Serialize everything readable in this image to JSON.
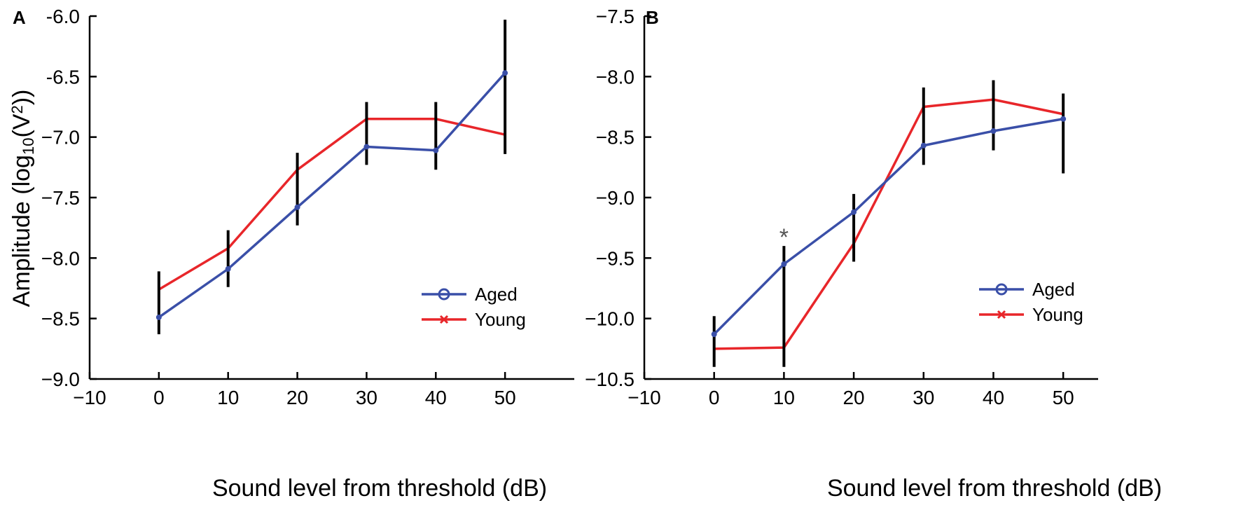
{
  "figure": {
    "y_axis_title": "Amplitude (log",
    "y_axis_title_sub": "10",
    "y_axis_title_tail": "(V",
    "y_axis_title_sup": "2",
    "y_axis_title_end": "))"
  },
  "chart_data": [
    {
      "panel": "A",
      "type": "line",
      "xlabel": "Sound level from threshold (dB)",
      "ylabel": "Amplitude (log10(V2))",
      "xlim": [
        -10,
        60
      ],
      "ylim": [
        -9.0,
        -6.0
      ],
      "xticks": [
        -10,
        0,
        10,
        20,
        30,
        40,
        50
      ],
      "xtick_labels": [
        "−10",
        "0",
        "10",
        "20",
        "30",
        "40",
        "50"
      ],
      "yticks": [
        -9.0,
        -8.5,
        -8.0,
        -7.5,
        -7.0,
        -6.5,
        -6.0
      ],
      "ytick_labels": [
        "−9.0",
        "−8.5",
        "−8.0",
        "−7.5",
        "−7.0",
        "-6.5",
        "-6.0"
      ],
      "x": [
        0,
        10,
        20,
        30,
        40,
        50
      ],
      "series": [
        {
          "name": "Aged",
          "color": "#3a4fa8",
          "marker": "o",
          "values": [
            -8.49,
            -8.09,
            -7.58,
            -7.08,
            -7.11,
            -6.47
          ]
        },
        {
          "name": "Young",
          "color": "#e8262a",
          "marker": "x",
          "values": [
            -8.26,
            -7.92,
            -7.27,
            -6.85,
            -6.85,
            -6.98
          ]
        }
      ],
      "errorbars": [
        {
          "x": 0,
          "low": -8.63,
          "high": -8.11
        },
        {
          "x": 10,
          "low": -8.24,
          "high": -7.77
        },
        {
          "x": 20,
          "low": -7.73,
          "high": -7.13
        },
        {
          "x": 30,
          "low": -7.23,
          "high": -6.71
        },
        {
          "x": 40,
          "low": -7.27,
          "high": -6.71
        },
        {
          "x": 50,
          "low": -7.14,
          "high": -6.03
        }
      ],
      "legend": {
        "location": "lower-right",
        "entries": [
          "Aged",
          "Young"
        ]
      },
      "annotations": []
    },
    {
      "panel": "B",
      "type": "line",
      "xlabel": "Sound level from threshold (dB)",
      "ylabel": "",
      "xlim": [
        -10,
        55
      ],
      "ylim": [
        -10.5,
        -7.5
      ],
      "xticks": [
        -10,
        0,
        10,
        20,
        30,
        40,
        50
      ],
      "xtick_labels": [
        "−10",
        "0",
        "10",
        "20",
        "30",
        "40",
        "50"
      ],
      "yticks": [
        -10.5,
        -10.0,
        -9.5,
        -9.0,
        -8.5,
        -8.0,
        -7.5
      ],
      "ytick_labels": [
        "−10.5",
        "−10.0",
        "−9.5",
        "−9.0",
        "−8.5",
        "−8.0",
        "−7.5"
      ],
      "x": [
        0,
        10,
        20,
        30,
        40,
        50
      ],
      "series": [
        {
          "name": "Aged",
          "color": "#3a4fa8",
          "marker": "o",
          "values": [
            -10.13,
            -9.55,
            -9.12,
            -8.57,
            -8.45,
            -8.35
          ]
        },
        {
          "name": "Young",
          "color": "#e8262a",
          "marker": "x",
          "values": [
            -10.25,
            -10.24,
            -9.38,
            -8.25,
            -8.19,
            -8.31
          ]
        }
      ],
      "errorbars": [
        {
          "x": 0,
          "low": -10.4,
          "high": -9.98
        },
        {
          "x": 10,
          "low": -10.4,
          "high": -9.4
        },
        {
          "x": 20,
          "low": -9.53,
          "high": -8.97
        },
        {
          "x": 30,
          "low": -8.73,
          "high": -8.09
        },
        {
          "x": 40,
          "low": -8.61,
          "high": -8.03
        },
        {
          "x": 50,
          "low": -8.8,
          "high": -8.14
        }
      ],
      "legend": {
        "location": "lower-right",
        "entries": [
          "Aged",
          "Young"
        ]
      },
      "annotations": [
        {
          "text": "*",
          "x": 10,
          "y": -9.29
        }
      ]
    }
  ]
}
